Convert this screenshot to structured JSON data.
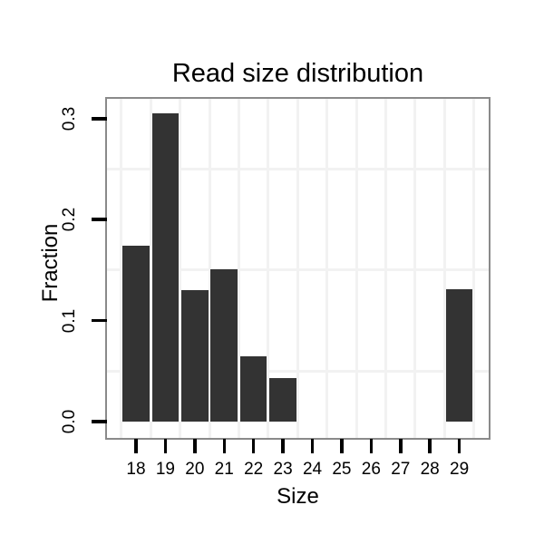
{
  "chart_data": {
    "type": "bar",
    "title": "Read size distribution",
    "xlabel": "Size",
    "ylabel": "Fraction",
    "categories": [
      "18",
      "19",
      "20",
      "21",
      "22",
      "23",
      "24",
      "25",
      "26",
      "27",
      "28",
      "29"
    ],
    "values": [
      0.174,
      0.305,
      0.13,
      0.151,
      0.065,
      0.043,
      0,
      0,
      0,
      0,
      0,
      0.131
    ],
    "y_ticks": [
      "0.0",
      "0.1",
      "0.2",
      "0.3"
    ],
    "ylim": [
      -0.016,
      0.32
    ],
    "xlim": [
      17.0,
      30.0
    ],
    "legend": "none",
    "grid": "minor gridlines only (half-step x positions; 0.05/0.15/0.25 y positions)",
    "bar_color": "#333333",
    "panel_border_color": "#8a8a8a",
    "grid_color": "#f2f2f2",
    "tick_color": "#000000",
    "text_color": "#000000",
    "background_color": "#ffffff"
  }
}
